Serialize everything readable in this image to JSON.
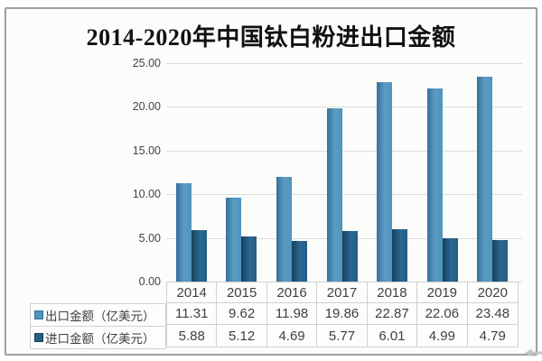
{
  "title": "2014-2020年中国钛白粉进出口金额",
  "chart_data": {
    "type": "bar",
    "title": "2014-2020年中国钛白粉进出口金额",
    "categories": [
      "2014",
      "2015",
      "2016",
      "2017",
      "2018",
      "2019",
      "2020"
    ],
    "series": [
      {
        "name": "出口金额（亿美元）",
        "values": [
          11.31,
          9.62,
          11.98,
          19.86,
          22.87,
          22.06,
          23.48
        ]
      },
      {
        "name": "进口金额（亿美元）",
        "values": [
          5.88,
          5.12,
          4.69,
          5.77,
          6.01,
          4.99,
          4.79
        ]
      }
    ],
    "ylabel": "",
    "xlabel": "",
    "ylim": [
      0,
      25
    ],
    "yticks": [
      25,
      20,
      15,
      10,
      5,
      0
    ],
    "ytick_decimals": 2,
    "grid": true,
    "legend_position": "bottom-left",
    "data_table_below_axis": true
  },
  "colors": {
    "export_bar": "#4f93bb",
    "export_bar_light": "#5b9cc4",
    "export_bar_edge": "#35719b",
    "import_bar": "#235e84",
    "import_bar_light": "#2a6890",
    "import_bar_edge": "#16415c",
    "gridline": "#dcdcdc",
    "table_border": "#d0d0d0",
    "frame_border": "#9e9e9e",
    "text": "#3f3f3f"
  },
  "decor": {
    "corner_arrow": "left-arrow"
  }
}
